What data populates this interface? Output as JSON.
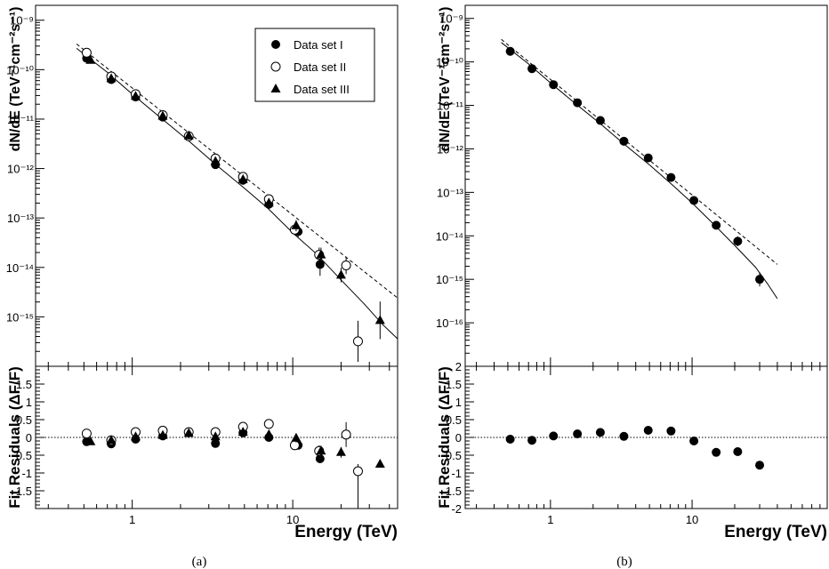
{
  "chart_data": [
    {
      "id": "a",
      "caption": "(a)",
      "type": "scatter",
      "xlabel": "Energy (TeV)",
      "ylabel": "dN/dE (TeV⁻¹cm⁻²s⁻¹)",
      "residual_ylabel": "Fit Residuals (ΔF/F)",
      "xscale": "log",
      "yscale": "log",
      "xlim": [
        0.25,
        45
      ],
      "ylim": [
        1e-16,
        2e-09
      ],
      "residual_ylim": [
        -2,
        2
      ],
      "x_tick_labels": [
        {
          "v": 1,
          "t": "1"
        },
        {
          "v": 10,
          "t": "10"
        }
      ],
      "y_tick_labels": [
        {
          "exp": -9,
          "t": "10⁻⁹"
        },
        {
          "exp": -10,
          "t": "10⁻¹⁰"
        },
        {
          "exp": -11,
          "t": "10⁻¹¹"
        },
        {
          "exp": -12,
          "t": "10⁻¹²"
        },
        {
          "exp": -13,
          "t": "10⁻¹³"
        },
        {
          "exp": -14,
          "t": "10⁻¹⁴"
        },
        {
          "exp": -15,
          "t": "10⁻¹⁵"
        }
      ],
      "residual_tick_labels": [
        {
          "v": 1.5,
          "t": "1.5"
        },
        {
          "v": 1,
          "t": "1"
        },
        {
          "v": 0.5,
          "t": "0.5"
        },
        {
          "v": 0,
          "t": "0"
        },
        {
          "v": -0.5,
          "t": "-0.5"
        },
        {
          "v": -1,
          "t": "-1"
        },
        {
          "v": -1.5,
          "t": "-1.5"
        }
      ],
      "legend": {
        "position": "top-right"
      },
      "series": [
        {
          "name": "Data set I",
          "marker": "filled-circle",
          "x": [
            0.52,
            0.74,
            1.05,
            1.55,
            2.25,
            3.3,
            4.9,
            7.1,
            10.8,
            14.8
          ],
          "y": [
            1.7e-10,
            6.3e-11,
            2.8e-11,
            1.1e-11,
            4.5e-12,
            1.2e-12,
            5.8e-13,
            1.9e-13,
            5.3e-14,
            1.15e-14
          ],
          "yerr_up": [
            1.15,
            1.15,
            1.15,
            1.15,
            1.15,
            1.2,
            1.2,
            1.25,
            1.3,
            1.6
          ],
          "yerr_down": [
            1.15,
            1.15,
            1.15,
            1.15,
            1.15,
            1.2,
            1.2,
            1.25,
            1.3,
            1.7
          ],
          "residual": [
            -0.12,
            -0.18,
            -0.05,
            0.04,
            0.13,
            -0.17,
            0.13,
            0.0,
            -0.22,
            -0.6
          ],
          "residual_err": [
            0.05,
            0.05,
            0.05,
            0.05,
            0.06,
            0.08,
            0.08,
            0.1,
            0.1,
            0.12
          ]
        },
        {
          "name": "Data set II",
          "marker": "open-circle",
          "x": [
            0.52,
            0.74,
            1.05,
            1.55,
            2.25,
            3.3,
            4.9,
            7.1,
            10.3,
            14.6,
            21.5,
            25.5
          ],
          "y": [
            2.2e-10,
            7.3e-11,
            3.2e-11,
            1.2e-11,
            4.5e-12,
            1.6e-12,
            6.8e-13,
            2.4e-13,
            5.8e-14,
            1.8e-14,
            1.1e-14,
            3.2e-16
          ],
          "yerr_up": [
            1.15,
            1.15,
            1.15,
            1.15,
            1.15,
            1.2,
            1.2,
            1.25,
            1.3,
            1.4,
            1.5,
            2.6
          ],
          "yerr_down": [
            1.15,
            1.15,
            1.15,
            1.15,
            1.15,
            1.2,
            1.2,
            1.25,
            1.3,
            1.4,
            1.5,
            2.6
          ],
          "residual": [
            0.11,
            -0.08,
            0.15,
            0.19,
            0.15,
            0.15,
            0.3,
            0.38,
            -0.22,
            -0.38,
            0.08,
            -0.95
          ],
          "residual_err": [
            0.05,
            0.05,
            0.05,
            0.06,
            0.06,
            0.08,
            0.1,
            0.12,
            0.12,
            0.16,
            0.35,
            0.2
          ]
        },
        {
          "name": "Data set III",
          "marker": "filled-triangle",
          "x": [
            0.55,
            0.74,
            1.05,
            1.55,
            2.25,
            3.3,
            4.9,
            7.1,
            10.5,
            15.0,
            20.0,
            35.0
          ],
          "y": [
            1.55e-10,
            6.6e-11,
            2.9e-11,
            1.15e-11,
            4.6e-12,
            1.4e-12,
            6e-13,
            2e-13,
            7e-14,
            1.8e-14,
            7e-15,
            8.5e-16
          ],
          "yerr_up": [
            1.15,
            1.15,
            1.15,
            1.15,
            1.15,
            1.2,
            1.2,
            1.25,
            1.3,
            1.4,
            1.4,
            2.4
          ],
          "yerr_down": [
            1.15,
            1.15,
            1.15,
            1.15,
            1.15,
            1.2,
            1.2,
            1.25,
            1.3,
            1.4,
            1.4,
            2.4
          ],
          "residual": [
            -0.12,
            -0.08,
            0.02,
            0.06,
            0.12,
            0.02,
            0.15,
            0.08,
            -0.02,
            -0.38,
            -0.42,
            -0.75
          ],
          "residual_err": [
            0.05,
            0.05,
            0.05,
            0.05,
            0.06,
            0.07,
            0.08,
            0.1,
            0.12,
            0.15,
            0.15,
            0.1
          ]
        }
      ],
      "fits": [
        {
          "style": "solid",
          "x": [
            0.45,
            0.7,
            1,
            1.5,
            2.25,
            3.3,
            5,
            7,
            10,
            14,
            20,
            28,
            36,
            45
          ],
          "y": [
            2.7e-10,
            8.8e-11,
            3.2e-11,
            1.07e-11,
            3.62e-12,
            1.22e-12,
            4e-13,
            1.56e-13,
            5e-14,
            1.9e-14,
            5.6e-15,
            1.8e-15,
            7.2e-16,
            3.6e-16
          ]
        },
        {
          "style": "dashed",
          "x": [
            0.45,
            45
          ],
          "y": [
            3.3e-10,
            2.4e-15
          ]
        }
      ]
    },
    {
      "id": "b",
      "caption": "(b)",
      "type": "scatter",
      "xlabel": "Energy (TeV)",
      "ylabel": "dN/dE (TeV⁻¹cm⁻²s⁻¹)",
      "residual_ylabel": "Fit Residuals (ΔF/F)",
      "xscale": "log",
      "yscale": "log",
      "xlim": [
        0.25,
        90
      ],
      "ylim": [
        1e-17,
        2e-09
      ],
      "residual_ylim": [
        -2,
        2
      ],
      "x_tick_labels": [
        {
          "v": 1,
          "t": "1"
        },
        {
          "v": 10,
          "t": "10"
        }
      ],
      "y_tick_labels": [
        {
          "exp": -9,
          "t": "10⁻⁹"
        },
        {
          "exp": -10,
          "t": "10⁻¹⁰"
        },
        {
          "exp": -11,
          "t": "10⁻¹¹"
        },
        {
          "exp": -12,
          "t": "10⁻¹²"
        },
        {
          "exp": -13,
          "t": "10⁻¹³"
        },
        {
          "exp": -14,
          "t": "10⁻¹⁴"
        },
        {
          "exp": -15,
          "t": "10⁻¹⁵"
        },
        {
          "exp": -16,
          "t": "10⁻¹⁶"
        }
      ],
      "residual_tick_labels": [
        {
          "v": 2,
          "t": "2"
        },
        {
          "v": 1.5,
          "t": "1.5"
        },
        {
          "v": 1,
          "t": "1"
        },
        {
          "v": 0.5,
          "t": "0.5"
        },
        {
          "v": 0,
          "t": "0"
        },
        {
          "v": -0.5,
          "t": "-0.5"
        },
        {
          "v": -1,
          "t": "-1"
        },
        {
          "v": -1.5,
          "t": "-1.5"
        },
        {
          "v": -2,
          "t": "-2"
        }
      ],
      "series": [
        {
          "name": "",
          "marker": "filled-circle",
          "x": [
            0.52,
            0.74,
            1.05,
            1.55,
            2.25,
            3.3,
            4.9,
            7.1,
            10.3,
            14.8,
            21.0,
            30.0
          ],
          "y": [
            1.75e-10,
            7e-11,
            3e-11,
            1.15e-11,
            4.5e-12,
            1.5e-12,
            6.2e-13,
            2.2e-13,
            6.5e-14,
            1.75e-14,
            7.5e-15,
            1e-15
          ],
          "yerr_up": [
            1.1,
            1.1,
            1.1,
            1.1,
            1.1,
            1.12,
            1.12,
            1.15,
            1.2,
            1.25,
            1.3,
            1.45
          ],
          "yerr_down": [
            1.1,
            1.1,
            1.1,
            1.1,
            1.1,
            1.12,
            1.12,
            1.15,
            1.2,
            1.25,
            1.3,
            1.45
          ],
          "residual": [
            -0.05,
            -0.08,
            0.04,
            0.1,
            0.14,
            0.03,
            0.2,
            0.18,
            -0.1,
            -0.42,
            -0.4,
            -0.78
          ],
          "residual_err": [
            0.03,
            0.03,
            0.03,
            0.03,
            0.04,
            0.04,
            0.05,
            0.05,
            0.06,
            0.07,
            0.1,
            0.08
          ]
        }
      ],
      "fits": [
        {
          "style": "solid",
          "x": [
            0.45,
            0.7,
            1,
            1.5,
            2.25,
            3.3,
            5,
            7,
            10,
            14,
            20,
            28,
            34,
            40
          ],
          "y": [
            2.8e-10,
            9e-11,
            3.3e-11,
            1.1e-11,
            3.8e-12,
            1.3e-12,
            4.3e-13,
            1.65e-13,
            5.7e-14,
            1.95e-14,
            6e-15,
            1.9e-15,
            8e-16,
            3.6e-16
          ]
        },
        {
          "style": "dashed",
          "x": [
            0.45,
            40
          ],
          "y": [
            3.3e-10,
            2.2e-15
          ]
        }
      ]
    }
  ]
}
